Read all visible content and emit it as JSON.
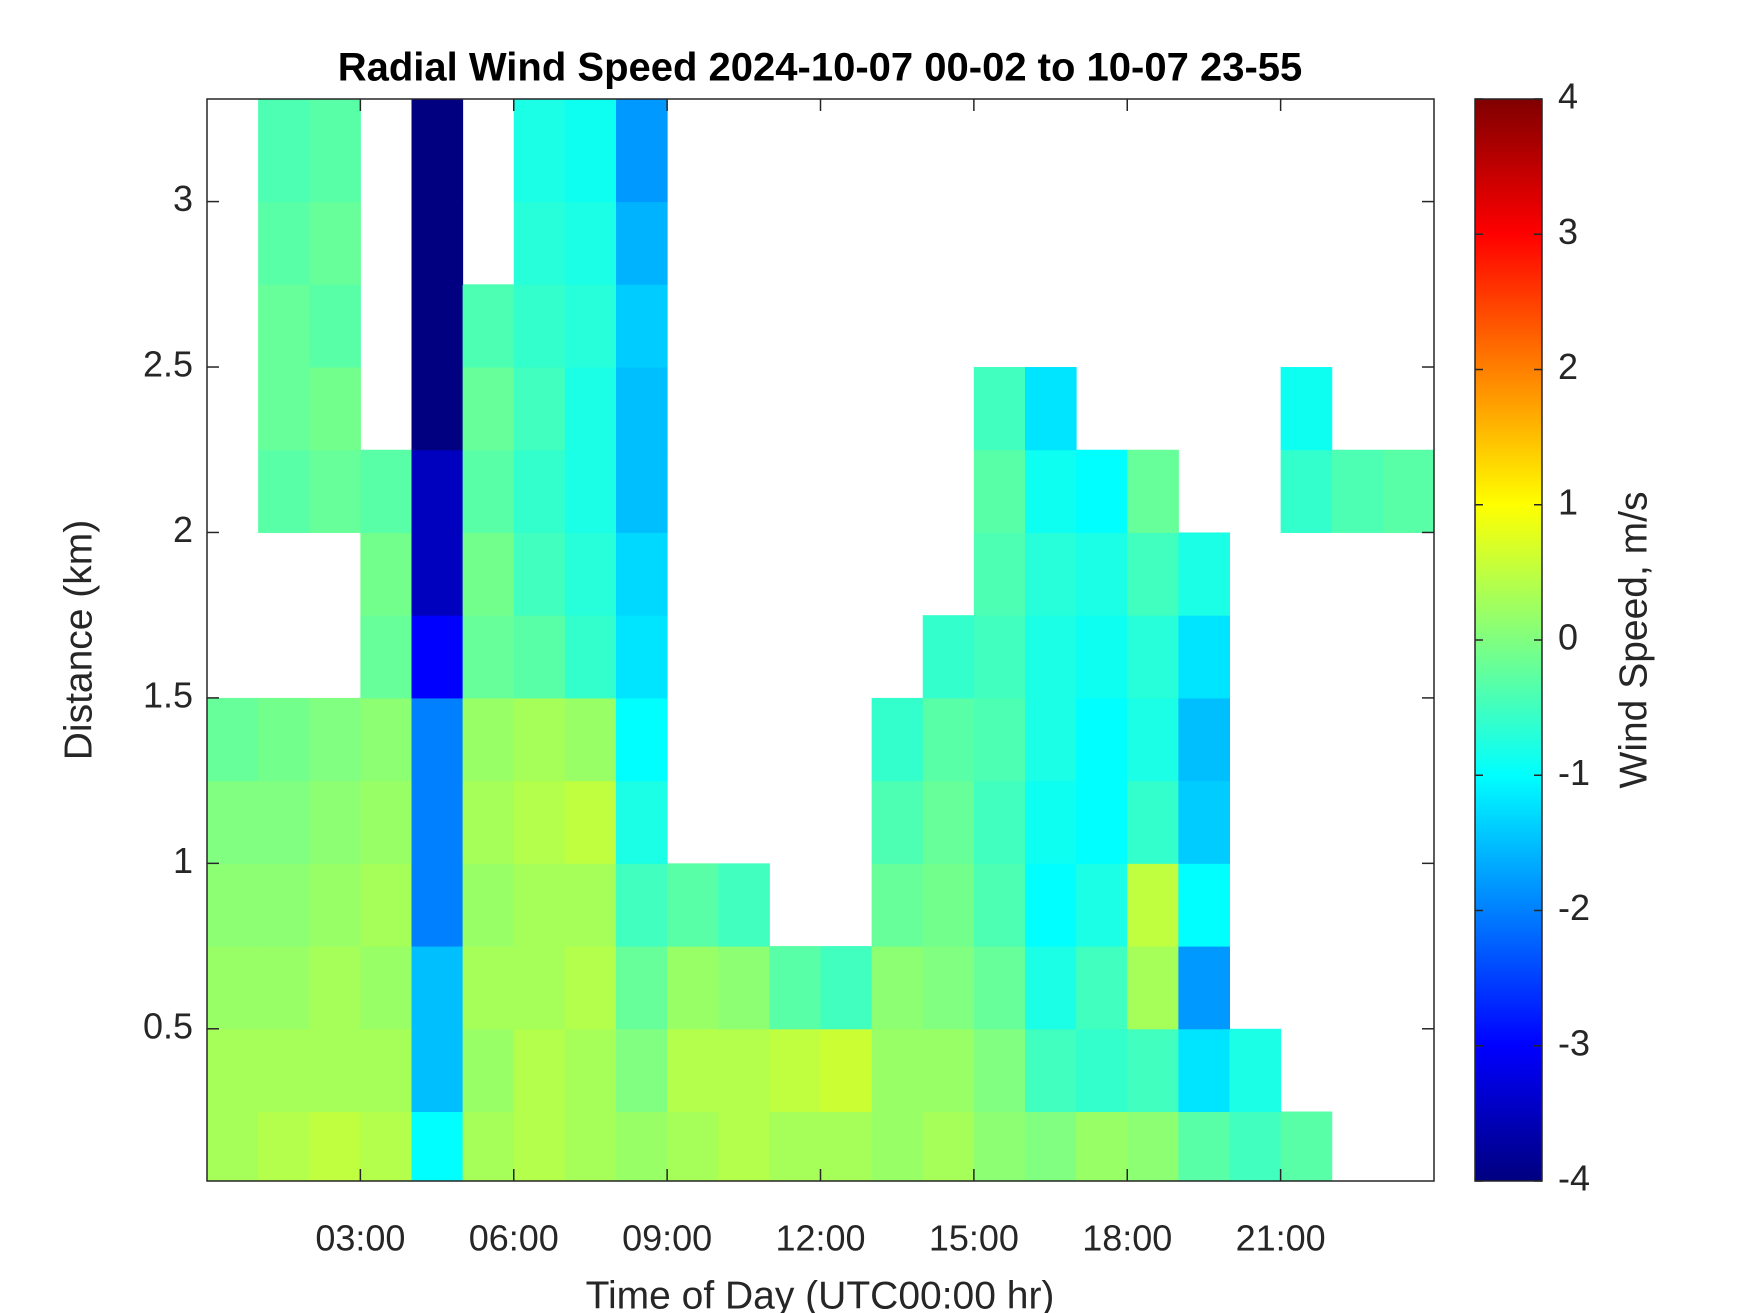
{
  "chart_data": {
    "type": "heatmap",
    "title": "Radial Wind Speed 2024-10-07 00-02 to 10-07 23-55",
    "x_label": "Time of Day (UTC00:00 hr)",
    "y_label": "Distance (km)",
    "colorbar_label": "Wind Speed, m/s",
    "colormap": "jet",
    "x": [
      0,
      1,
      2,
      3,
      4,
      5,
      6,
      7,
      8,
      9,
      10,
      11,
      12,
      13,
      14,
      15,
      16,
      17,
      18,
      19,
      20,
      21,
      22,
      23,
      24
    ],
    "y": [
      0.04,
      0.25,
      0.5,
      0.75,
      1,
      1.25,
      1.5,
      1.75,
      2,
      2.25,
      2.5,
      2.75,
      3,
      3.31
    ],
    "z": [
      [
        0.3,
        0.4,
        0.5,
        0.4,
        -1,
        0.3,
        0.4,
        0.3,
        0.2,
        0.3,
        0.4,
        0.3,
        0.3,
        0.2,
        0.3,
        0.1,
        0,
        0.2,
        0.1,
        -0.3,
        -0.5,
        -0.3,
        null,
        null
      ],
      [
        0.3,
        0.3,
        0.3,
        0.3,
        -1.5,
        0.2,
        0.4,
        0.3,
        0,
        0.4,
        0.4,
        0.5,
        0.6,
        0.2,
        0.2,
        0,
        -0.5,
        -0.6,
        -0.5,
        -1.2,
        -0.8,
        null,
        null,
        null
      ],
      [
        0.2,
        0.2,
        0.3,
        0.2,
        -1.5,
        0.3,
        0.3,
        0.4,
        -0.2,
        0.2,
        0.1,
        -0.3,
        -0.5,
        0.1,
        0,
        -0.2,
        -0.8,
        -0.5,
        0.3,
        -1.8,
        null,
        null,
        null,
        null
      ],
      [
        0.1,
        0.1,
        0.2,
        0.3,
        -2,
        0.2,
        0.3,
        0.3,
        -0.5,
        -0.3,
        -0.5,
        null,
        null,
        -0.2,
        -0.1,
        -0.4,
        -1,
        -0.8,
        0.5,
        -1,
        null,
        null,
        null,
        null
      ],
      [
        0,
        0,
        0.1,
        0.2,
        -2,
        0.3,
        0.4,
        0.5,
        -0.8,
        null,
        null,
        null,
        null,
        -0.4,
        -0.2,
        -0.5,
        -0.9,
        -1,
        -0.6,
        -1.4,
        null,
        null,
        null,
        null
      ],
      [
        -0.2,
        -0.1,
        0,
        0.1,
        -2,
        0.2,
        0.3,
        0.2,
        -1,
        null,
        null,
        null,
        null,
        -0.6,
        -0.3,
        -0.4,
        -0.8,
        -1,
        -0.8,
        -1.5,
        null,
        null,
        null,
        null
      ],
      [
        null,
        null,
        null,
        -0.2,
        -3,
        -0.2,
        -0.3,
        -0.6,
        -1.2,
        null,
        null,
        null,
        null,
        null,
        -0.6,
        -0.5,
        -0.8,
        -0.9,
        -0.7,
        -1.2,
        null,
        null,
        null,
        null
      ],
      [
        null,
        null,
        null,
        -0.1,
        -3.5,
        -0.1,
        -0.5,
        -0.7,
        -1.3,
        null,
        null,
        null,
        null,
        null,
        null,
        -0.4,
        -0.7,
        -0.8,
        -0.5,
        -0.8,
        null,
        null,
        null,
        null
      ],
      [
        null,
        -0.3,
        -0.2,
        -0.3,
        -3.5,
        -0.3,
        -0.6,
        -0.8,
        -1.5,
        null,
        null,
        null,
        null,
        null,
        null,
        -0.3,
        -0.9,
        -1,
        -0.2,
        null,
        null,
        -0.6,
        -0.4,
        -0.3
      ],
      [
        null,
        -0.2,
        -0.1,
        null,
        -4,
        -0.2,
        -0.5,
        -0.8,
        -1.5,
        null,
        null,
        null,
        null,
        null,
        null,
        -0.5,
        -1.2,
        null,
        null,
        null,
        null,
        -0.9,
        null,
        null
      ],
      [
        null,
        -0.2,
        -0.3,
        null,
        -4,
        -0.4,
        -0.6,
        -0.7,
        -1.4,
        null,
        null,
        null,
        null,
        null,
        null,
        null,
        null,
        null,
        null,
        null,
        null,
        null,
        null,
        null
      ],
      [
        null,
        -0.3,
        -0.2,
        null,
        -4,
        null,
        -0.7,
        -0.8,
        -1.6,
        null,
        null,
        null,
        null,
        null,
        null,
        null,
        null,
        null,
        null,
        null,
        null,
        null,
        null,
        null
      ],
      [
        null,
        -0.4,
        -0.3,
        null,
        -4,
        null,
        -0.8,
        -0.9,
        -1.8,
        null,
        null,
        null,
        null,
        null,
        null,
        null,
        null,
        null,
        null,
        null,
        null,
        null,
        null,
        null
      ]
    ],
    "xlim": [
      0,
      24
    ],
    "ylim": [
      0.04,
      3.31
    ],
    "clim": [
      -4,
      4
    ],
    "xticks": [
      {
        "value": 3,
        "label": "03:00"
      },
      {
        "value": 6,
        "label": "06:00"
      },
      {
        "value": 9,
        "label": "09:00"
      },
      {
        "value": 12,
        "label": "12:00"
      },
      {
        "value": 15,
        "label": "15:00"
      },
      {
        "value": 18,
        "label": "18:00"
      },
      {
        "value": 21,
        "label": "21:00"
      }
    ],
    "yticks": [
      0.5,
      1,
      1.5,
      2,
      2.5,
      3
    ],
    "cticks": [
      -4,
      -3,
      -2,
      -1,
      0,
      1,
      2,
      3,
      4
    ]
  }
}
